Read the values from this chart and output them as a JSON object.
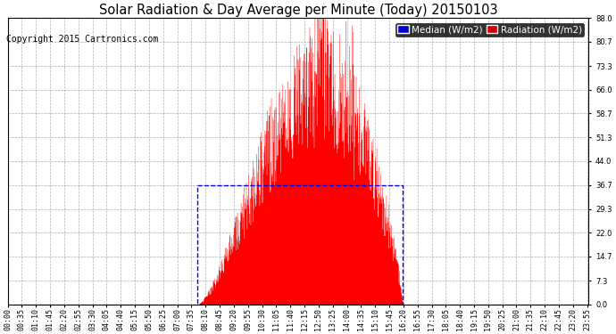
{
  "title": "Solar Radiation & Day Average per Minute (Today) 20150103",
  "copyright": "Copyright 2015 Cartronics.com",
  "legend_labels": [
    "Median (W/m2)",
    "Radiation (W/m2)"
  ],
  "legend_colors_bg": [
    "#0000cc",
    "#cc0000"
  ],
  "yticks": [
    0.0,
    7.3,
    14.7,
    22.0,
    29.3,
    36.7,
    44.0,
    51.3,
    58.7,
    66.0,
    73.3,
    80.7,
    88.0
  ],
  "ymax": 88.0,
  "ymin": 0.0,
  "bg_color": "#ffffff",
  "plot_bg_color": "#ffffff",
  "grid_color": "#999999",
  "bar_color": "#ff0000",
  "median_color": "#0000ff",
  "median_value": 36.7,
  "sunrise_min": 470,
  "sunset_min": 978,
  "title_fontsize": 10.5,
  "tick_fontsize": 6,
  "copyright_fontsize": 7,
  "legend_fontsize": 7.5
}
